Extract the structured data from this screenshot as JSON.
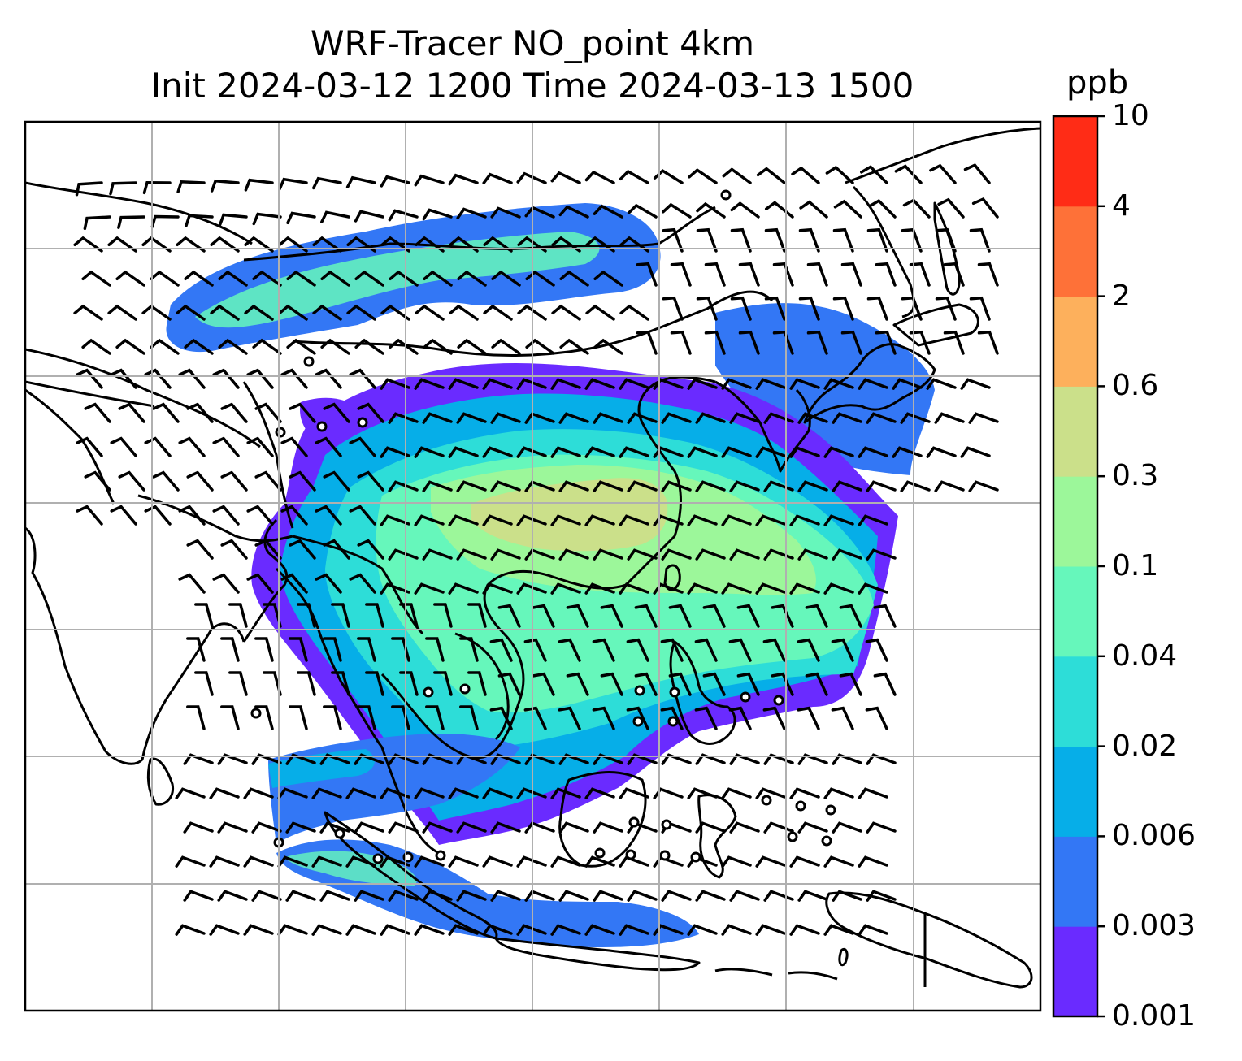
{
  "title": {
    "line1": "WRF-Tracer NO_point 4km",
    "line2": "Init 2024-03-12 1200 Time 2024-03-13 1500"
  },
  "colorbar": {
    "unit": "ppb",
    "levels": [
      "0.001",
      "0.003",
      "0.006",
      "0.02",
      "0.04",
      "0.1",
      "0.3",
      "0.6",
      "2",
      "4",
      "10"
    ],
    "colors": [
      "#6a2bff",
      "#3377f5",
      "#06aee8",
      "#2dddd8",
      "#66f7bb",
      "#9cf79a",
      "#cbe08a",
      "#fdb05c",
      "#fe7138",
      "#ff2c16"
    ]
  },
  "map": {
    "coastline_color": "#000000",
    "gridline_color": "#b0b0b0",
    "barb_color": "#000000"
  }
}
